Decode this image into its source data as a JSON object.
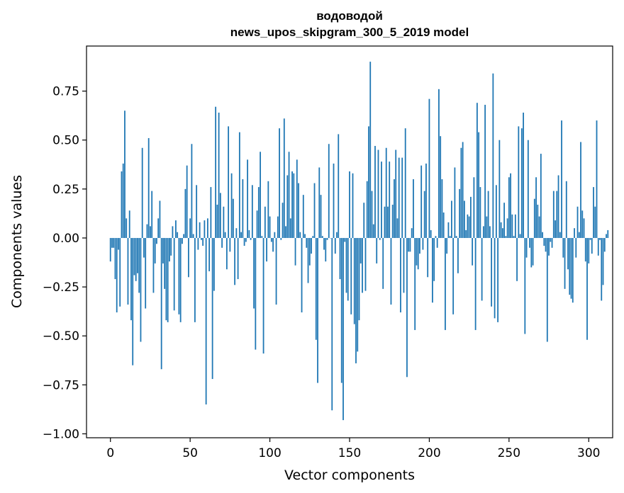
{
  "chart_data": {
    "type": "bar",
    "title": "водоводой",
    "subtitle": "news_upos_skipgram_300_5_2019 model",
    "xlabel": "Vector components",
    "ylabel": "Components values",
    "xlim": [
      -15,
      315
    ],
    "ylim": [
      -1.02,
      0.98
    ],
    "xticks": [
      0,
      50,
      100,
      150,
      200,
      250,
      300
    ],
    "yticks": [
      -1.0,
      -0.75,
      -0.5,
      -0.25,
      0.0,
      0.25,
      0.5,
      0.75
    ],
    "xtick_labels": [
      "0",
      "50",
      "100",
      "150",
      "200",
      "250",
      "300"
    ],
    "ytick_labels": [
      "−1.00",
      "−0.75",
      "−0.50",
      "−0.25",
      "0.00",
      "0.25",
      "0.50",
      "0.75"
    ],
    "grid": false,
    "bar_color": "#1f77b4",
    "values": [
      -0.12,
      -0.05,
      -0.05,
      -0.21,
      -0.38,
      -0.06,
      -0.35,
      0.34,
      0.38,
      0.65,
      0.1,
      -0.34,
      0.14,
      -0.42,
      -0.65,
      -0.19,
      -0.22,
      -0.18,
      -0.28,
      -0.53,
      0.46,
      -0.1,
      -0.36,
      0.07,
      0.51,
      0.06,
      0.24,
      -0.28,
      -0.13,
      -0.03,
      0.1,
      0.19,
      -0.67,
      -0.13,
      -0.26,
      -0.42,
      -0.43,
      -0.12,
      -0.09,
      0.06,
      -0.37,
      0.09,
      0.03,
      -0.39,
      -0.43,
      -0.03,
      0.02,
      0.25,
      0.37,
      -0.2,
      0.1,
      0.48,
      0.02,
      -0.43,
      0.27,
      -0.06,
      0.08,
      -0.01,
      -0.04,
      0.09,
      -0.85,
      0.1,
      -0.17,
      0.26,
      -0.72,
      -0.27,
      0.67,
      0.17,
      0.64,
      0.23,
      -0.05,
      0.16,
      0.03,
      -0.16,
      0.57,
      -0.07,
      0.33,
      0.2,
      -0.24,
      0.05,
      -0.21,
      0.54,
      0.03,
      0.3,
      -0.04,
      -0.02,
      0.4,
      0.04,
      -0.01,
      0.27,
      -0.36,
      -0.57,
      0.14,
      0.26,
      0.44,
      0.01,
      -0.59,
      0.16,
      -0.12,
      0.29,
      0.11,
      -0.02,
      -0.07,
      0.03,
      -0.34,
      0.11,
      0.56,
      -0.01,
      0.18,
      0.61,
      0.06,
      0.32,
      0.44,
      0.1,
      0.34,
      0.33,
      -0.14,
      0.4,
      0.28,
      0.03,
      -0.38,
      0.22,
      0.02,
      -0.05,
      -0.23,
      -0.14,
      -0.08,
      0.01,
      0.28,
      -0.52,
      -0.74,
      0.36,
      0.22,
      0.01,
      -0.06,
      -0.12,
      -0.01,
      0.48,
      0.0,
      -0.88,
      0.38,
      -0.08,
      0.03,
      0.53,
      -0.21,
      -0.74,
      -0.93,
      -0.02,
      -0.28,
      -0.32,
      0.34,
      -0.39,
      0.33,
      -0.44,
      -0.64,
      -0.58,
      -0.42,
      -0.13,
      -0.28,
      0.18,
      -0.27,
      0.29,
      0.57,
      0.9,
      0.24,
      0.07,
      0.47,
      -0.13,
      0.45,
      -0.01,
      0.39,
      -0.26,
      0.16,
      0.46,
      0.16,
      0.39,
      -0.34,
      0.17,
      0.3,
      0.45,
      0.1,
      0.41,
      -0.38,
      0.41,
      -0.28,
      0.56,
      -0.71,
      -0.07,
      -0.07,
      0.05,
      0.3,
      -0.47,
      -0.14,
      -0.16,
      -0.08,
      0.37,
      -0.06,
      0.24,
      0.38,
      -0.2,
      0.71,
      0.04,
      -0.33,
      -0.22,
      0.01,
      -0.05,
      0.76,
      0.52,
      0.3,
      0.13,
      -0.47,
      -0.08,
      0.08,
      0.01,
      0.19,
      -0.39,
      0.36,
      0.01,
      -0.18,
      0.25,
      0.46,
      0.49,
      0.19,
      0.04,
      0.12,
      0.11,
      0.21,
      -0.14,
      0.31,
      -0.47,
      0.69,
      0.54,
      0.26,
      -0.32,
      0.06,
      0.68,
      0.11,
      0.24,
      0.06,
      -0.35,
      0.84,
      -0.41,
      0.27,
      -0.43,
      0.5,
      0.08,
      0.05,
      0.18,
      0.01,
      0.1,
      0.31,
      0.33,
      0.12,
      0.01,
      0.12,
      -0.22,
      0.57,
      0.02,
      0.56,
      0.64,
      -0.49,
      -0.1,
      0.5,
      -0.05,
      -0.15,
      -0.14,
      0.2,
      0.31,
      0.17,
      0.11,
      0.43,
      0.03,
      -0.04,
      -0.07,
      -0.53,
      -0.09,
      -0.02,
      -0.05,
      0.24,
      0.09,
      0.24,
      0.32,
      0.03,
      0.6,
      -0.1,
      -0.26,
      0.29,
      -0.16,
      -0.29,
      -0.31,
      -0.33,
      0.05,
      -0.1,
      0.16,
      0.03,
      0.49,
      0.14,
      0.1,
      -0.12,
      -0.52,
      -0.13,
      -0.01,
      -0.08,
      0.26,
      0.16,
      0.6,
      -0.09,
      -0.01,
      -0.32,
      -0.24,
      -0.07,
      0.02,
      0.04
    ]
  }
}
